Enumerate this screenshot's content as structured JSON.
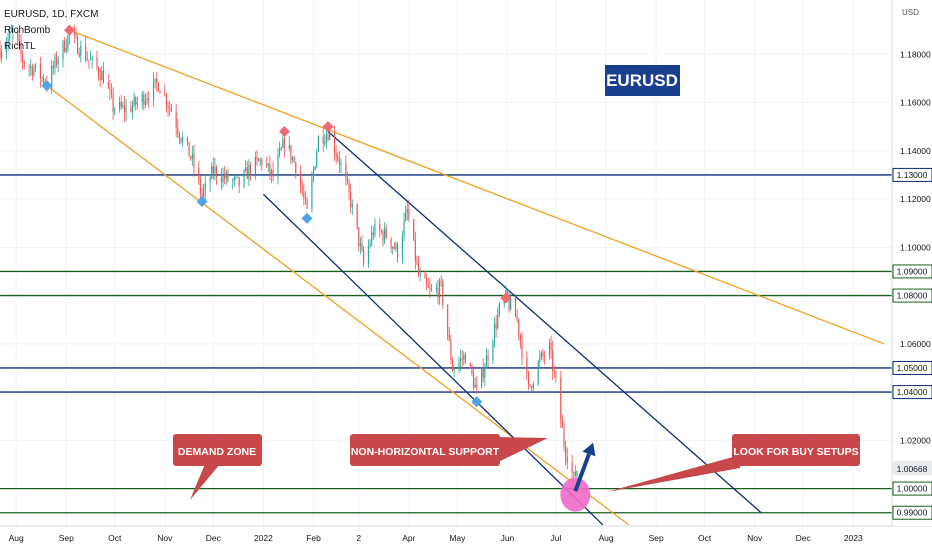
{
  "header": {
    "symbol": "EURUSD, 1D, FXCM",
    "indicators": [
      "RichBomb",
      "RichTL"
    ]
  },
  "axis_currency": "USD",
  "colors": {
    "up": "#26a69a",
    "down": "#ef5350",
    "blue_line": "#0d2c7a",
    "green_line": "#1b5e20",
    "orange_line": "#f0a020",
    "callout": "#c8474a",
    "title_badge": "#1a3f8f",
    "pink_marker": "#f06ac8",
    "pivot_high": "#ef6b73",
    "pivot_low": "#4fa3e6"
  },
  "title_badge": {
    "text": "EURUSD"
  },
  "callouts": {
    "demand_zone": "DEMAND ZONE",
    "support": "NON-HORIZONTAL SUPPORT",
    "buy_setups": "LOOK FOR BUY SETUPS"
  },
  "chart_data": {
    "type": "candlestick",
    "x_labels": [
      "Aug",
      "Sep",
      "Oct",
      "Nov",
      "Dec",
      "2022",
      "Feb",
      "2",
      "Apr",
      "May",
      "Jun",
      "Jul",
      "Aug",
      "Sep",
      "Oct",
      "Nov",
      "Dec",
      "2023"
    ],
    "y_ticks": [
      "1.18000",
      "1.16000",
      "1.14000",
      "1.12000",
      "1.10000",
      "1.06000",
      "1.02000"
    ],
    "ylim": [
      0.9845,
      1.2025
    ],
    "current_price": "1.00668",
    "price_lines": [
      {
        "label": "1.13000",
        "value": 1.13,
        "color": "blue"
      },
      {
        "label": "1.09000",
        "value": 1.09,
        "color": "green"
      },
      {
        "label": "1.08000",
        "value": 1.08,
        "color": "green"
      },
      {
        "label": "1.05000",
        "value": 1.05,
        "color": "blue"
      },
      {
        "label": "1.04000",
        "value": 1.04,
        "color": "blue"
      },
      {
        "label": "1.00000",
        "value": 1.0,
        "color": "green"
      },
      {
        "label": "0.99000",
        "value": 0.99,
        "color": "green"
      }
    ],
    "price_path": [
      [
        "2021-07-22",
        1.182
      ],
      [
        "2021-07-30",
        1.189
      ],
      [
        "2021-08-06",
        1.176
      ],
      [
        "2021-08-12",
        1.174
      ],
      [
        "2021-08-20",
        1.168
      ],
      [
        "2021-08-27",
        1.179
      ],
      [
        "2021-09-03",
        1.188
      ],
      [
        "2021-09-10",
        1.182
      ],
      [
        "2021-09-17",
        1.176
      ],
      [
        "2021-09-24",
        1.171
      ],
      [
        "2021-09-30",
        1.158
      ],
      [
        "2021-10-08",
        1.157
      ],
      [
        "2021-10-15",
        1.16
      ],
      [
        "2021-10-22",
        1.164
      ],
      [
        "2021-10-28",
        1.168
      ],
      [
        "2021-11-05",
        1.157
      ],
      [
        "2021-11-11",
        1.146
      ],
      [
        "2021-11-18",
        1.136
      ],
      [
        "2021-11-24",
        1.121
      ],
      [
        "2021-12-01",
        1.132
      ],
      [
        "2021-12-10",
        1.128
      ],
      [
        "2021-12-17",
        1.126
      ],
      [
        "2021-12-24",
        1.133
      ],
      [
        "2021-12-31",
        1.136
      ],
      [
        "2022-01-07",
        1.129
      ],
      [
        "2022-01-14",
        1.144
      ],
      [
        "2022-01-21",
        1.134
      ],
      [
        "2022-01-28",
        1.114
      ],
      [
        "2022-02-04",
        1.145
      ],
      [
        "2022-02-10",
        1.148
      ],
      [
        "2022-02-17",
        1.136
      ],
      [
        "2022-02-24",
        1.119
      ],
      [
        "2022-03-04",
        1.093
      ],
      [
        "2022-03-10",
        1.107
      ],
      [
        "2022-03-18",
        1.105
      ],
      [
        "2022-03-25",
        1.098
      ],
      [
        "2022-03-31",
        1.115
      ],
      [
        "2022-04-07",
        1.088
      ],
      [
        "2022-04-14",
        1.081
      ],
      [
        "2022-04-21",
        1.083
      ],
      [
        "2022-04-28",
        1.05
      ],
      [
        "2022-05-06",
        1.055
      ],
      [
        "2022-05-13",
        1.04
      ],
      [
        "2022-05-20",
        1.056
      ],
      [
        "2022-05-27",
        1.074
      ],
      [
        "2022-05-31",
        1.079
      ],
      [
        "2022-06-07",
        1.07
      ],
      [
        "2022-06-14",
        1.041
      ],
      [
        "2022-06-21",
        1.053
      ],
      [
        "2022-06-27",
        1.058
      ],
      [
        "2022-07-01",
        1.043
      ],
      [
        "2022-07-06",
        1.019
      ],
      [
        "2022-07-12",
        1.004
      ],
      [
        "2022-07-14",
        1.008
      ]
    ],
    "pivots": [
      {
        "kind": "high",
        "date": "2021-09-03",
        "price": 1.19
      },
      {
        "kind": "low",
        "date": "2021-08-20",
        "price": 1.167
      },
      {
        "kind": "low",
        "date": "2021-11-24",
        "price": 1.119
      },
      {
        "kind": "high",
        "date": "2022-01-14",
        "price": 1.148
      },
      {
        "kind": "high",
        "date": "2022-02-10",
        "price": 1.15
      },
      {
        "kind": "low",
        "date": "2022-01-28",
        "price": 1.112
      },
      {
        "kind": "low",
        "date": "2022-05-13",
        "price": 1.036
      },
      {
        "kind": "high",
        "date": "2022-05-31",
        "price": 1.079
      }
    ],
    "trendlines": [
      {
        "name": "orange-upper-trendline",
        "color": "orange",
        "from": [
          "2021-09-03",
          1.19
        ],
        "to": [
          "2023-01-20",
          1.06
        ]
      },
      {
        "name": "orange-lower-trendline",
        "color": "orange",
        "from": [
          "2021-08-20",
          1.167
        ],
        "to": [
          "2022-08-15",
          0.985
        ]
      },
      {
        "name": "channel-upper-line",
        "color": "blue",
        "from": [
          "2022-02-10",
          1.148
        ],
        "to": [
          "2022-11-05",
          0.99
        ]
      },
      {
        "name": "channel-lower-line",
        "color": "blue",
        "from": [
          "2022-01-01",
          1.122
        ],
        "to": [
          "2022-07-30",
          0.985
        ]
      }
    ],
    "projection_arrow": {
      "from": [
        "2022-07-13",
        0.999
      ],
      "to": [
        "2022-07-24",
        1.019
      ]
    },
    "marker_circle": {
      "date": "2022-07-13",
      "price": 0.9975
    }
  }
}
